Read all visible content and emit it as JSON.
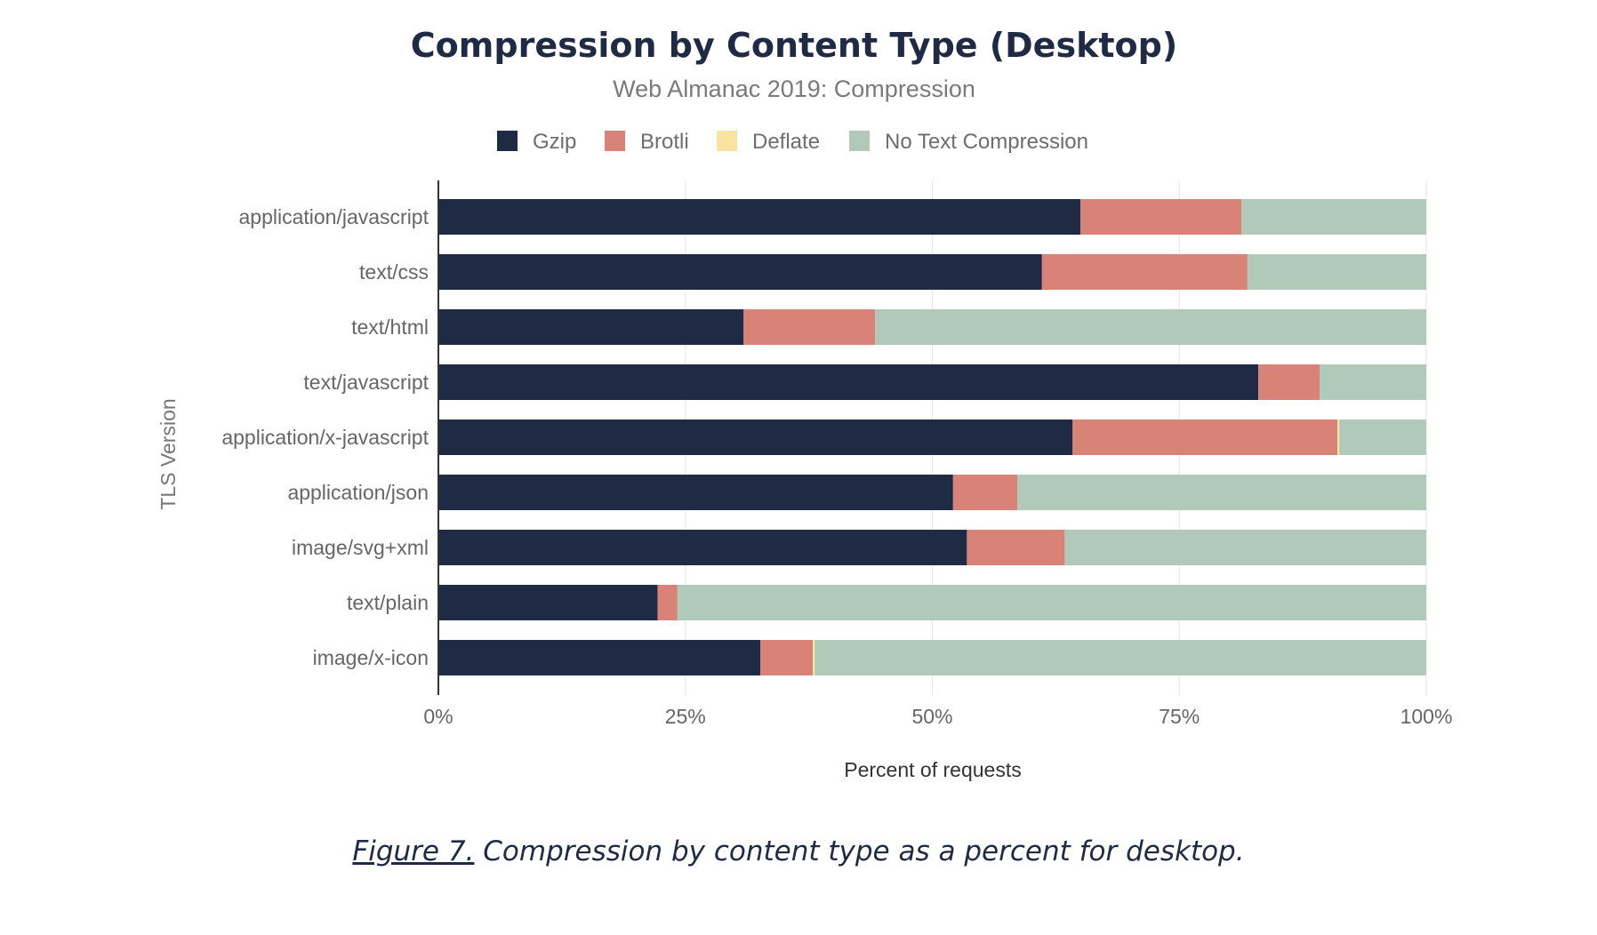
{
  "chart_data": {
    "type": "bar",
    "orientation": "horizontal",
    "stacked": true,
    "title": "Compression by Content Type (Desktop)",
    "subtitle": "Web Almanac 2019: Compression",
    "xlabel": "Percent of requests",
    "ylabel": "TLS Version",
    "xlim": [
      0,
      100
    ],
    "x_ticks": [
      "0%",
      "25%",
      "50%",
      "75%",
      "100%"
    ],
    "grid": true,
    "legend_position": "top",
    "categories": [
      "application/javascript",
      "text/css",
      "text/html",
      "text/javascript",
      "application/x-javascript",
      "application/json",
      "image/svg+xml",
      "text/plain",
      "image/x-icon"
    ],
    "series": [
      {
        "name": "Gzip",
        "color": "#1f2b45",
        "values": [
          65.0,
          61.1,
          30.9,
          83.0,
          64.2,
          52.1,
          53.5,
          22.2,
          32.6
        ]
      },
      {
        "name": "Brotli",
        "color": "#d98278",
        "values": [
          16.3,
          20.8,
          13.3,
          6.2,
          26.8,
          6.5,
          9.9,
          2.0,
          5.3
        ]
      },
      {
        "name": "Deflate",
        "color": "#f9e3a1",
        "values": [
          0.0,
          0.0,
          0.0,
          0.0,
          0.2,
          0.0,
          0.0,
          0.0,
          0.2
        ]
      },
      {
        "name": "No Text Compression",
        "color": "#b1c9b9",
        "values": [
          18.7,
          18.1,
          55.8,
          10.8,
          8.8,
          41.4,
          36.6,
          75.8,
          61.9
        ]
      }
    ]
  },
  "caption": {
    "figure": "Figure 7.",
    "text": " Compression by content type as a percent for desktop."
  }
}
